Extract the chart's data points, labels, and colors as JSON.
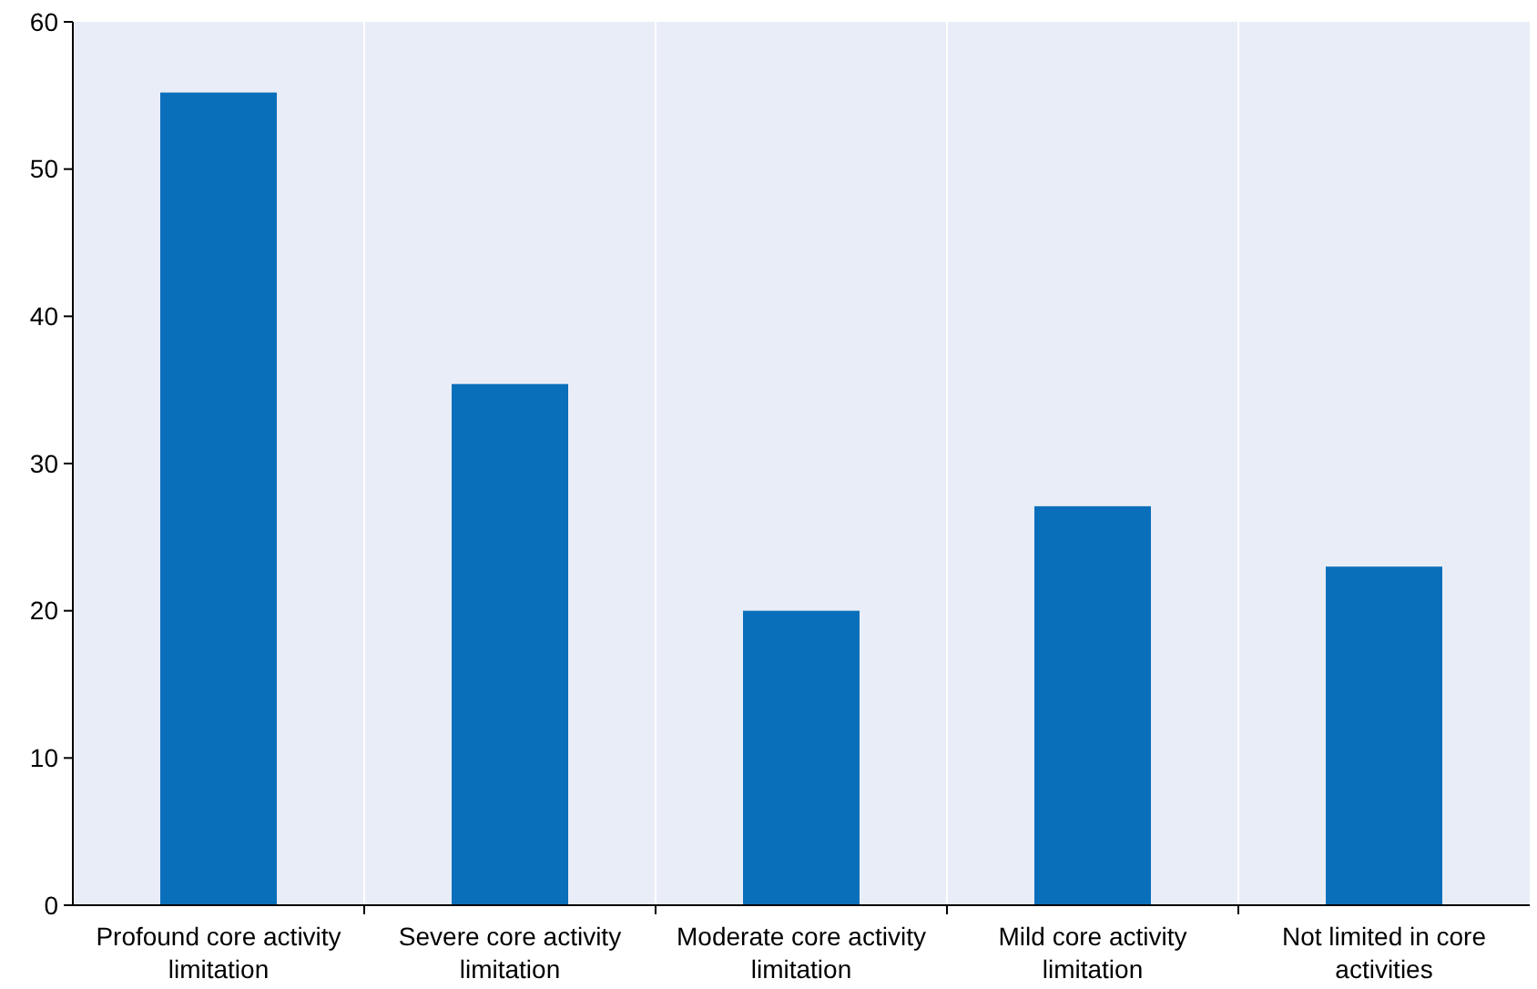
{
  "chart_data": {
    "type": "bar",
    "categories": [
      "Profound core activity limitation",
      "Severe core activity limitation",
      "Moderate core activity limitation",
      "Mild core activity limitation",
      "Not limited in core activities"
    ],
    "values": [
      55.2,
      35.4,
      20,
      27.1,
      23
    ],
    "color": "#0a6fba",
    "ylim": [
      0,
      60
    ],
    "yticks": [
      0,
      10,
      20,
      30,
      40,
      50,
      60
    ],
    "grid": "x"
  }
}
